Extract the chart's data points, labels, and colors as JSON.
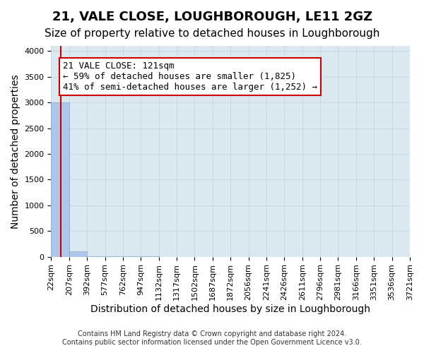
{
  "title": "21, VALE CLOSE, LOUGHBOROUGH, LE11 2GZ",
  "subtitle": "Size of property relative to detached houses in Loughborough",
  "xlabel": "Distribution of detached houses by size in Loughborough",
  "ylabel": "Number of detached properties",
  "footer_line1": "Contains HM Land Registry data © Crown copyright and database right 2024.",
  "footer_line2": "Contains public sector information licensed under the Open Government Licence v3.0.",
  "bin_edges": [
    22,
    207,
    392,
    577,
    762,
    947,
    1132,
    1317,
    1502,
    1687,
    1872,
    2056,
    2241,
    2426,
    2611,
    2796,
    2981,
    3166,
    3351,
    3536,
    3721
  ],
  "bin_labels": [
    "22sqm",
    "207sqm",
    "392sqm",
    "577sqm",
    "762sqm",
    "947sqm",
    "1132sqm",
    "1317sqm",
    "1502sqm",
    "1687sqm",
    "1872sqm",
    "2056sqm",
    "2241sqm",
    "2426sqm",
    "2611sqm",
    "2796sqm",
    "2981sqm",
    "3166sqm",
    "3351sqm",
    "3536sqm",
    "3721sqm"
  ],
  "bar_heights": [
    3000,
    110,
    5,
    3,
    2,
    2,
    1,
    1,
    1,
    1,
    0,
    0,
    0,
    0,
    0,
    0,
    0,
    0,
    0,
    0
  ],
  "bar_color": "#aec6e8",
  "bar_edge_color": "#7fafd4",
  "property_size": 121,
  "property_label": "21 VALE CLOSE: 121sqm",
  "annotation_text": "21 VALE CLOSE: 121sqm\n← 59% of detached houses are smaller (1,825)\n41% of semi-detached houses are larger (1,252) →",
  "vline_color": "#cc0000",
  "annotation_box_color": "#ffffff",
  "annotation_box_edge_color": "#cc0000",
  "ylim": [
    0,
    4100
  ],
  "yticks": [
    0,
    500,
    1000,
    1500,
    2000,
    2500,
    3000,
    3500,
    4000
  ],
  "grid_color": "#c8d8e8",
  "bg_color": "#dce8f0",
  "title_fontsize": 13,
  "subtitle_fontsize": 11,
  "axis_label_fontsize": 10,
  "tick_fontsize": 8,
  "annotation_fontsize": 9
}
